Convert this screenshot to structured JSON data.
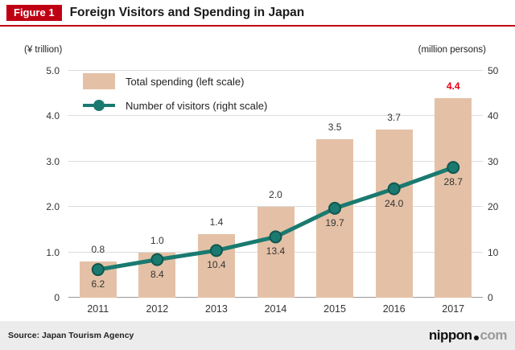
{
  "header": {
    "figure_label": "Figure 1",
    "title": "Foreign Visitors and Spending in Japan"
  },
  "colors": {
    "accent": "#bf0012",
    "highlight": "#e60012",
    "grid": "#dcdcdc",
    "baseline": "#999999",
    "footer_bg": "#ececec"
  },
  "chart_data": {
    "type": "bar+line",
    "title": "Foreign Visitors and Spending in Japan",
    "categories": [
      "2011",
      "2012",
      "2013",
      "2014",
      "2015",
      "2016",
      "2017"
    ],
    "series": [
      {
        "name": "Total spending (left scale)",
        "type": "bar",
        "axis": "left",
        "values": [
          0.8,
          1.0,
          1.4,
          2.0,
          3.5,
          3.7,
          4.4
        ],
        "labels": [
          "0.8",
          "1.0",
          "1.4",
          "2.0",
          "3.5",
          "3.7",
          "4.4"
        ],
        "color": "#e4c1a6",
        "last_label_highlighted": true
      },
      {
        "name": "Number of visitors (right scale)",
        "type": "line",
        "axis": "right",
        "values": [
          6.2,
          8.4,
          10.4,
          13.4,
          19.7,
          24.0,
          28.7
        ],
        "labels": [
          "6.2",
          "8.4",
          "10.4",
          "13.4",
          "19.7",
          "24.0",
          "28.7"
        ],
        "color": "#1a7a70",
        "marker_stroke": "#11564e"
      }
    ],
    "left_axis": {
      "unit": "(¥ trillion)",
      "min": 0,
      "max": 5,
      "ticks": [
        0,
        1,
        2,
        3,
        4,
        5
      ],
      "tick_labels": [
        "0",
        "1.0",
        "2.0",
        "3.0",
        "4.0",
        "5.0"
      ]
    },
    "right_axis": {
      "unit": "(million persons)",
      "min": 0,
      "max": 50,
      "ticks": [
        0,
        10,
        20,
        30,
        40,
        50
      ],
      "tick_labels": [
        "0",
        "10",
        "20",
        "30",
        "40",
        "50"
      ]
    },
    "grid": true,
    "legend_position": "top-left-inside"
  },
  "footer": {
    "source": "Source: Japan Tourism Agency",
    "logo": {
      "name": "nippon",
      "suffix": "com"
    }
  }
}
